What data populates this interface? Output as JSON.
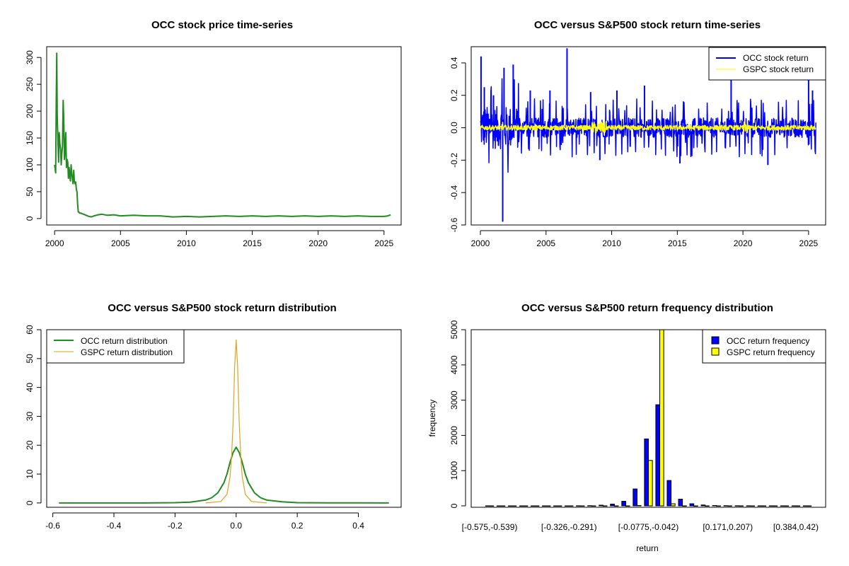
{
  "colors": {
    "occ_price": "#228B22",
    "occ_return": "#0000FF",
    "gspc_return": "#FFFF00",
    "occ_density": "#228B22",
    "gspc_density": "#DAA520",
    "occ_hist": "#0000FF",
    "gspc_hist": "#FFFF00"
  },
  "chart_data": [
    {
      "type": "line",
      "title": "OCC stock price time-series",
      "xlabel": "",
      "ylabel": "",
      "xlim": [
        1999.4,
        2026.3
      ],
      "ylim": [
        -12,
        320
      ],
      "xticks": [
        2000,
        2005,
        2010,
        2015,
        2020,
        2025
      ],
      "yticks": [
        0,
        50,
        100,
        150,
        200,
        250,
        300
      ],
      "series": [
        {
          "color": "occ_price",
          "x": [
            2000.0,
            2000.08,
            2000.12,
            2000.16,
            2000.2,
            2000.25,
            2000.3,
            2000.35,
            2000.4,
            2000.45,
            2000.5,
            2000.55,
            2000.6,
            2000.65,
            2000.7,
            2000.75,
            2000.8,
            2000.85,
            2000.9,
            2000.95,
            2001.0,
            2001.05,
            2001.1,
            2001.15,
            2001.2,
            2001.25,
            2001.3,
            2001.35,
            2001.4,
            2001.45,
            2001.5,
            2001.55,
            2001.6,
            2001.65,
            2001.7,
            2001.75,
            2001.8,
            2001.85,
            2001.9,
            2002.0,
            2002.2,
            2002.4,
            2002.6,
            2002.8,
            2003.0,
            2003.3,
            2003.6,
            2004.0,
            2004.5,
            2005.0,
            2006.0,
            2007.0,
            2008.0,
            2009.0,
            2010.0,
            2011.0,
            2012.0,
            2013.0,
            2014.0,
            2015.0,
            2016.0,
            2017.0,
            2018.0,
            2019.0,
            2020.0,
            2021.0,
            2022.0,
            2023.0,
            2024.0,
            2025.0,
            2025.3,
            2025.5
          ],
          "y": [
            100,
            85,
            205,
            308,
            190,
            150,
            105,
            160,
            140,
            130,
            100,
            120,
            135,
            220,
            180,
            110,
            130,
            160,
            95,
            110,
            105,
            75,
            95,
            80,
            70,
            100,
            85,
            75,
            65,
            90,
            70,
            65,
            68,
            55,
            50,
            25,
            12,
            12,
            10,
            10,
            8,
            6,
            4,
            3,
            5,
            7,
            8,
            6,
            7,
            5,
            6,
            5,
            5,
            3,
            4,
            3,
            4,
            5,
            4,
            5,
            4,
            5,
            4,
            5,
            4,
            5,
            4,
            5,
            4,
            4,
            5,
            7
          ]
        }
      ]
    },
    {
      "type": "line",
      "title": "OCC versus S&P500 stock return time-series",
      "xlabel": "",
      "ylabel": "",
      "xlim": [
        1999.3,
        2026.3
      ],
      "ylim": [
        -0.6,
        0.5
      ],
      "xticks": [
        2000,
        2005,
        2010,
        2015,
        2020,
        2025
      ],
      "yticks": [
        -0.6,
        -0.4,
        -0.2,
        0.0,
        0.2,
        0.4
      ],
      "legend": "top-right",
      "series": [
        {
          "name": "OCC stock return",
          "color": "occ_return",
          "style": "noise",
          "spikes": [
            {
              "x": 2000.05,
              "y": 0.44
            },
            {
              "x": 2000.3,
              "y": 0.25
            },
            {
              "x": 2001.0,
              "y": 0.2
            },
            {
              "x": 2001.7,
              "y": -0.58
            },
            {
              "x": 2001.8,
              "y": 0.37
            },
            {
              "x": 2002.5,
              "y": 0.39
            },
            {
              "x": 2003.8,
              "y": 0.23
            },
            {
              "x": 2005.3,
              "y": 0.23
            },
            {
              "x": 2006.6,
              "y": 0.49
            },
            {
              "x": 2008.4,
              "y": 0.22
            },
            {
              "x": 2009.1,
              "y": -0.2
            },
            {
              "x": 2010.4,
              "y": 0.23
            },
            {
              "x": 2012.5,
              "y": 0.26
            },
            {
              "x": 2015.2,
              "y": -0.22
            },
            {
              "x": 2019.1,
              "y": 0.33
            },
            {
              "x": 2021.9,
              "y": -0.23
            },
            {
              "x": 2025.0,
              "y": 0.31
            },
            {
              "x": 2025.3,
              "y": 0.23
            }
          ],
          "x_range": [
            2000.0,
            2025.55
          ],
          "amplitude": 0.06
        },
        {
          "name": "GSPC stock return",
          "color": "gspc_return",
          "style": "noise",
          "x_range": [
            2000.0,
            2025.55
          ],
          "amplitude": 0.015
        }
      ]
    },
    {
      "type": "line",
      "title": "OCC versus S&P500 stock return distribution",
      "xlabel": "",
      "ylabel": "",
      "xlim": [
        -0.62,
        0.54
      ],
      "ylim": [
        -1.5,
        60
      ],
      "xticks": [
        -0.6,
        -0.4,
        -0.2,
        0.0,
        0.2,
        0.4
      ],
      "yticks": [
        0,
        10,
        20,
        30,
        40,
        50,
        60
      ],
      "legend": "top-left",
      "series": [
        {
          "name": "OCC return distribution",
          "color": "occ_density",
          "x": [
            -0.58,
            -0.3,
            -0.2,
            -0.15,
            -0.1,
            -0.08,
            -0.06,
            -0.04,
            -0.03,
            -0.02,
            -0.01,
            0.0,
            0.01,
            0.02,
            0.03,
            0.04,
            0.06,
            0.08,
            0.1,
            0.15,
            0.2,
            0.3,
            0.5
          ],
          "y": [
            0,
            0,
            0.1,
            0.3,
            1.0,
            1.8,
            3.5,
            7.0,
            10.0,
            14.0,
            17.5,
            19.3,
            17.5,
            14.0,
            10.0,
            7.0,
            3.5,
            1.8,
            1.0,
            0.4,
            0.1,
            0.05,
            0
          ]
        },
        {
          "name": "GSPC return distribution",
          "color": "gspc_density",
          "x": [
            -0.1,
            -0.05,
            -0.03,
            -0.02,
            -0.015,
            -0.01,
            -0.005,
            0.0,
            0.005,
            0.01,
            0.015,
            0.02,
            0.03,
            0.05,
            0.1
          ],
          "y": [
            0,
            0.5,
            3.0,
            9.0,
            16.0,
            28.0,
            47.0,
            56.5,
            47.0,
            28.0,
            16.0,
            9.0,
            3.0,
            0.5,
            0
          ]
        }
      ]
    },
    {
      "type": "bar",
      "title": "OCC versus S&P500 return frequency distribution",
      "xlabel": "return",
      "ylabel": "frequency",
      "ylim": [
        0,
        5000
      ],
      "yticks": [
        0,
        1000,
        2000,
        3000,
        4000,
        5000
      ],
      "legend": "top-right",
      "tick_labels": [
        "[-0.575,-0.539)",
        "[-0.326,-0.291)",
        "[-0.0775,-0.042)",
        "[0.171,0.207)",
        "[0.384,0.42)"
      ],
      "tick_label_bin_index": [
        0,
        7,
        14,
        21,
        27
      ],
      "bin_count": 29,
      "series": [
        {
          "name": "OCC return frequency",
          "color": "occ_hist",
          "values": [
            1,
            0,
            0,
            0,
            0,
            0,
            0,
            0,
            2,
            5,
            20,
            50,
            130,
            480,
            1900,
            2870,
            720,
            190,
            60,
            25,
            10,
            5,
            3,
            2,
            1,
            1,
            1,
            1,
            1
          ]
        },
        {
          "name": "GSPC return frequency",
          "color": "gspc_hist",
          "values": [
            0,
            0,
            0,
            0,
            0,
            0,
            0,
            0,
            0,
            0,
            0,
            0,
            0,
            10,
            1290,
            5000,
            60,
            0,
            0,
            0,
            0,
            0,
            0,
            0,
            0,
            0,
            0,
            0,
            0
          ]
        }
      ]
    }
  ]
}
